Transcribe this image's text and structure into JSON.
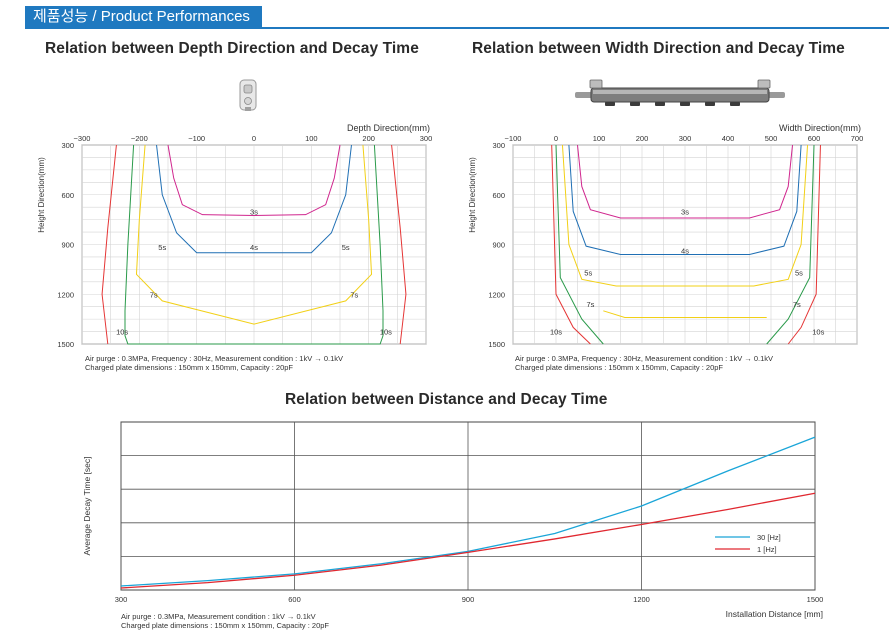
{
  "header": {
    "label": "제품성능 / Product Performances",
    "accent": "#1f79c0"
  },
  "depth": {
    "title": "Relation between Depth Direction and Decay Time",
    "notes": [
      "Air purge : 0.3MPa, Frequency : 30Hz, Measurement condition : 1kV → 0.1kV",
      "Charged plate dimensions : 150mm x 150mm, Capacity : 20pF"
    ]
  },
  "width": {
    "title": "Relation between Width Direction and Decay Time",
    "notes": [
      "Air purge : 0.3MPa, Frequency : 30Hz, Measurement condition : 1kV → 0.1kV",
      "Charged plate dimensions : 150mm x 150mm, Capacity : 20pF"
    ]
  },
  "distance": {
    "title": "Relation between Distance and Decay Time",
    "notes": [
      "Air purge : 0.3MPa, Measurement condition : 1kV → 0.1kV",
      "Charged plate dimensions : 150mm x 150mm, Capacity : 20pF"
    ]
  },
  "chart_data": [
    {
      "type": "line",
      "title": "Relation between Depth Direction and Decay Time",
      "xlabel": "Depth Direction(mm)",
      "ylabel": "Height Direction(mm)",
      "xticks": [
        -300,
        -200,
        -100,
        0,
        100,
        200,
        300
      ],
      "yticks": [
        300,
        600,
        900,
        1200,
        1500
      ],
      "xlim": [
        -300,
        300
      ],
      "ylim": [
        300,
        1500
      ],
      "grid": true,
      "series": [
        {
          "name": "3s",
          "color": "#d0268e",
          "label_at": [
            0,
            700
          ],
          "x": [
            -150,
            -140,
            -125,
            -90,
            0,
            90,
            125,
            140,
            150
          ],
          "y": [
            300,
            500,
            660,
            720,
            725,
            720,
            660,
            500,
            300
          ]
        },
        {
          "name": "4s",
          "color": "#1f6fb4",
          "label_at": [
            0,
            915
          ],
          "x": [
            -170,
            -160,
            -135,
            -100,
            0,
            100,
            135,
            160,
            170
          ],
          "y": [
            300,
            600,
            830,
            950,
            950,
            950,
            830,
            600,
            300
          ]
        },
        {
          "name": "5s",
          "color": "#f2d016",
          "label_at": [
            -160,
            915
          ],
          "label2_at": [
            160,
            915
          ],
          "x": [
            -190,
            -200,
            -205,
            -160,
            0,
            160,
            205,
            200,
            190
          ],
          "y": [
            300,
            750,
            1080,
            1240,
            1380,
            1240,
            1080,
            750,
            300
          ]
        },
        {
          "name": "7s",
          "color": "#2a9a4a",
          "label_at": [
            -175,
            1200
          ],
          "label2_at": [
            175,
            1200
          ],
          "x": [
            -210,
            -220,
            -225,
            -225,
            -220,
            220,
            225,
            225,
            220,
            210
          ],
          "y": [
            300,
            900,
            1300,
            1450,
            1500,
            1500,
            1450,
            1300,
            900,
            300
          ]
        },
        {
          "name": "10s",
          "color": "#e53535",
          "label_at": [
            -230,
            1425
          ],
          "label2_at": [
            230,
            1425
          ],
          "x": [
            -240,
            -255,
            -265,
            -255
          ],
          "y": [
            300,
            800,
            1200,
            1500
          ],
          "x2": [
            240,
            255,
            265,
            255
          ],
          "y2": [
            300,
            800,
            1200,
            1500
          ]
        }
      ]
    },
    {
      "type": "line",
      "title": "Relation between Width Direction and Decay Time",
      "xlabel": "Width Direction(mm)",
      "ylabel": "Height Direction(mm)",
      "xticks": [
        -100,
        0,
        100,
        200,
        300,
        400,
        500,
        600,
        700
      ],
      "yticks": [
        300,
        600,
        900,
        1200,
        1500
      ],
      "xlim": [
        -100,
        700
      ],
      "ylim": [
        300,
        1500
      ],
      "grid": true,
      "series": [
        {
          "name": "3s",
          "color": "#d0268e",
          "label_at": [
            300,
            700
          ],
          "x": [
            50,
            60,
            80,
            150,
            300,
            450,
            520,
            540,
            550
          ],
          "y": [
            300,
            550,
            690,
            740,
            740,
            740,
            690,
            550,
            300
          ]
        },
        {
          "name": "4s",
          "color": "#1f6fb4",
          "label_at": [
            300,
            935
          ],
          "x": [
            30,
            40,
            70,
            150,
            300,
            450,
            530,
            560,
            570
          ],
          "y": [
            300,
            700,
            910,
            960,
            960,
            960,
            910,
            700,
            300
          ]
        },
        {
          "name": "5s",
          "color": "#f2d016",
          "label_at": [
            75,
            1070
          ],
          "label2_at": [
            565,
            1070
          ],
          "x": [
            15,
            30,
            60,
            140,
            300,
            460,
            540,
            570,
            585
          ],
          "y": [
            300,
            900,
            1110,
            1150,
            1150,
            1150,
            1110,
            900,
            300
          ]
        },
        {
          "name": "7s",
          "color": "#2a9a4a",
          "label_at": [
            80,
            1260
          ],
          "label2_at": [
            560,
            1260
          ],
          "x": [
            0,
            10,
            60,
            110
          ],
          "y": [
            300,
            1100,
            1350,
            1500
          ],
          "x2": [
            600,
            590,
            540,
            490
          ],
          "y2": [
            300,
            1100,
            1350,
            1500
          ]
        },
        {
          "name": "10s",
          "color": "#e53535",
          "label_at": [
            0,
            1425
          ],
          "label2_at": [
            610,
            1425
          ],
          "x": [
            -10,
            0,
            40,
            80
          ],
          "y": [
            300,
            1200,
            1400,
            1500
          ],
          "x2": [
            615,
            605,
            570,
            540
          ],
          "y2": [
            300,
            1200,
            1400,
            1500
          ]
        }
      ],
      "extra_series": [
        {
          "name": "7s-bottom",
          "color": "#f2d016",
          "x": [
            110,
            160,
            490
          ],
          "y": [
            1300,
            1340,
            1340
          ]
        }
      ]
    },
    {
      "type": "line",
      "title": "Relation between Distance and Decay Time",
      "xlabel": "Installation Distance [mm]",
      "ylabel": "Average Decay Time [sec]",
      "xticks": [
        300,
        600,
        900,
        1200,
        1500
      ],
      "xlim": [
        300,
        1500
      ],
      "ylim": [
        0,
        5
      ],
      "grid": true,
      "legend": "bottom-right",
      "series": [
        {
          "name": "30 [Hz]",
          "color": "#1aa5d8",
          "x": [
            300,
            450,
            600,
            750,
            900,
            1050,
            1200,
            1350,
            1500
          ],
          "y": [
            0.12,
            0.28,
            0.48,
            0.78,
            1.15,
            1.68,
            2.5,
            3.55,
            4.55
          ]
        },
        {
          "name": "1 [Hz]",
          "color": "#e02830",
          "x": [
            300,
            450,
            600,
            750,
            900,
            1050,
            1200,
            1350,
            1500
          ],
          "y": [
            0.06,
            0.22,
            0.44,
            0.74,
            1.12,
            1.52,
            1.95,
            2.4,
            2.88
          ]
        }
      ]
    }
  ]
}
